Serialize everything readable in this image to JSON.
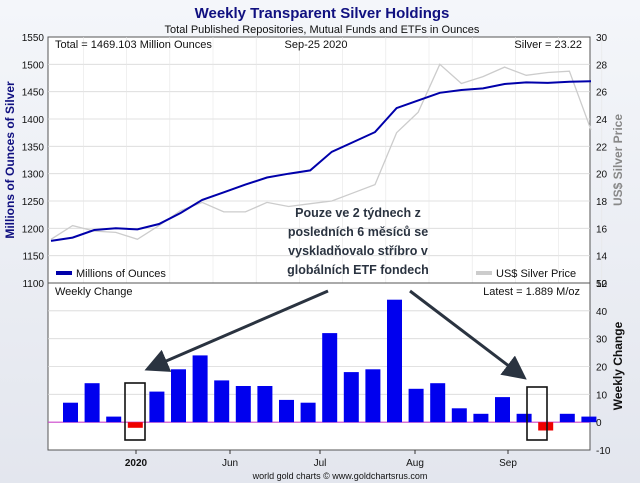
{
  "chart_data": [
    {
      "type": "line",
      "title": "Weekly Transparent Silver Holdings",
      "subtitle": "Total Published Repositories, Mutual Funds and ETFs in Ounces",
      "total_label": "Total = 1469.103 Million Ounces",
      "date_label": "Sep-25  2020",
      "silver_label": "Silver = 23.22",
      "ylabel": "Millions of Ounces of Silver",
      "ylabel_right": "US$ Silver Price",
      "ylim": [
        1100,
        1550
      ],
      "ylim_right": [
        12,
        30
      ],
      "yticks": [
        "1100",
        "1150",
        "1200",
        "1250",
        "1300",
        "1350",
        "1400",
        "1450",
        "1500",
        "1550"
      ],
      "yticks_right": [
        "12",
        "14",
        "16",
        "18",
        "20",
        "22",
        "24",
        "26",
        "28",
        "30"
      ],
      "grid": true,
      "series": [
        {
          "name": "Millions of Ounces",
          "color": "#0000aa",
          "values": [
            1177,
            1183,
            1197,
            1200,
            1198,
            1208,
            1228,
            1252,
            1266,
            1280,
            1293,
            1300,
            1306,
            1340,
            1358,
            1376,
            1420,
            1434,
            1448,
            1453,
            1456,
            1464,
            1467,
            1466,
            1468,
            1469
          ]
        },
        {
          "name": "US$ Silver Price",
          "color": "#cccccc",
          "values": [
            15.2,
            16.2,
            15.8,
            15.7,
            15.2,
            16.2,
            17.3,
            17.9,
            17.2,
            17.2,
            17.9,
            17.6,
            17.8,
            18.0,
            18.6,
            19.2,
            23.0,
            24.5,
            28.0,
            26.6,
            27.1,
            27.8,
            27.2,
            27.4,
            27.5,
            23.2
          ]
        }
      ]
    },
    {
      "type": "bar",
      "title": "Weekly Change",
      "latest_label": "Latest = 1.889 M/oz",
      "ylabel_right": "Weekly Change",
      "ylim": [
        -10,
        50
      ],
      "yticks": [
        "-10",
        "0",
        "10",
        "20",
        "30",
        "40",
        "50"
      ],
      "x_tick_labels": [
        "2020",
        "Jun",
        "Jul",
        "Aug",
        "Sep"
      ],
      "values": [
        7,
        14,
        2,
        -2,
        11,
        19,
        24,
        15,
        13,
        13,
        8,
        7,
        32,
        18,
        19,
        44,
        12,
        14,
        5,
        3,
        9,
        3,
        -3,
        3,
        2
      ],
      "positive_color": "#0000ee",
      "negative_color": "#ee0000"
    }
  ],
  "annotation": {
    "lines": [
      "Pouze ve 2 týdnech z",
      "posledních 6 měsíců se",
      "vyskladňovalo stříbro v",
      "globálních ETF fondech"
    ]
  },
  "footer": "world gold charts © www.goldchartsrus.com"
}
